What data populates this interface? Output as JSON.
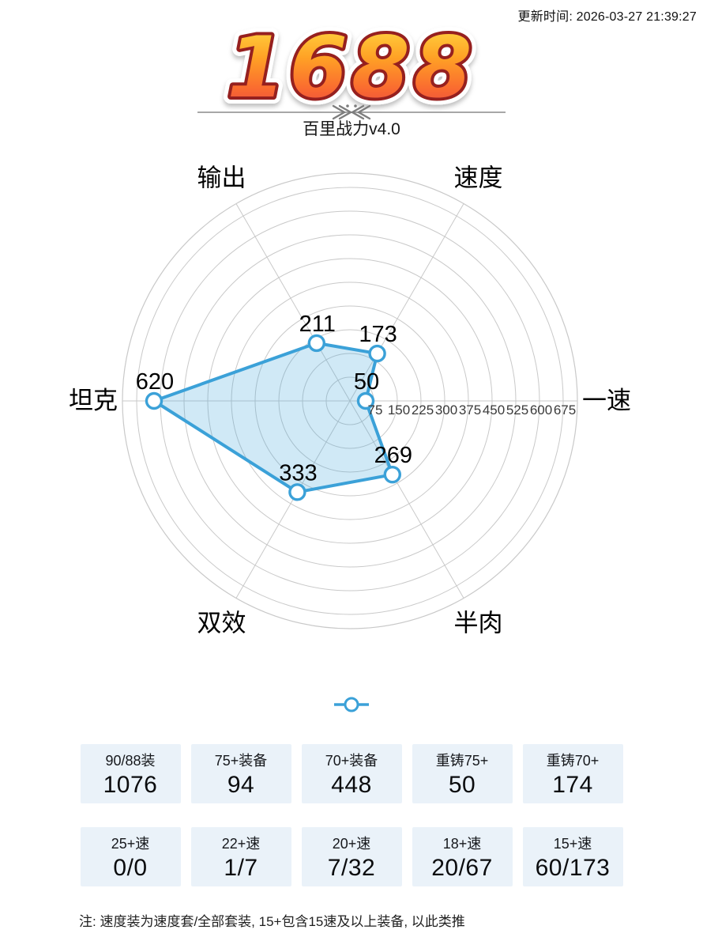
{
  "header": {
    "update_time": "更新时间: 2026-03-27 21:39:27"
  },
  "logo": {
    "text": "1688",
    "subtitle": "百里战力v4.0"
  },
  "chart_data": {
    "type": "radar",
    "categories": [
      "一速",
      "速度",
      "输出",
      "坦克",
      "双效",
      "半肉"
    ],
    "values": [
      50,
      173,
      211,
      620,
      333,
      269
    ],
    "angles_deg": [
      0,
      60,
      120,
      180,
      240,
      300
    ],
    "r_ticks": [
      75,
      150,
      225,
      300,
      375,
      450,
      525,
      600,
      675
    ],
    "r_max": 720,
    "grid": true,
    "legend_position": "bottom-center",
    "colors": {
      "line": "#3ba1d8",
      "fill": "rgba(59,161,216,0.24)",
      "marker_fill": "#ffffff",
      "grid": "#c9c9c9",
      "tick_text": "#3a3a3a",
      "label_text": "#000000"
    }
  },
  "legend": {
    "symbol": "line-circle-marker",
    "color": "#3ba1d8"
  },
  "logo_colors": {
    "gradient_top": "#ffdf45",
    "gradient_mid1": "#ffa125",
    "gradient_mid2": "#fa6a30",
    "gradient_bottom": "#e34444",
    "outline": "#96201f"
  },
  "stats": {
    "rows": [
      {
        "items": [
          {
            "label": "90/88装",
            "value": "1076"
          },
          {
            "label": "75+装备",
            "value": "94"
          },
          {
            "label": "70+装备",
            "value": "448"
          },
          {
            "label": "重铸75+",
            "value": "50"
          },
          {
            "label": "重铸70+",
            "value": "174"
          }
        ]
      },
      {
        "items": [
          {
            "label": "25+速",
            "value": "0/0"
          },
          {
            "label": "22+速",
            "value": "1/7"
          },
          {
            "label": "20+速",
            "value": "7/32"
          },
          {
            "label": "18+速",
            "value": "20/67"
          },
          {
            "label": "15+速",
            "value": "60/173"
          }
        ]
      }
    ]
  },
  "footer": {
    "note": "注: 速度装为速度套/全部套装, 15+包含15速及以上装备, 以此类推"
  }
}
